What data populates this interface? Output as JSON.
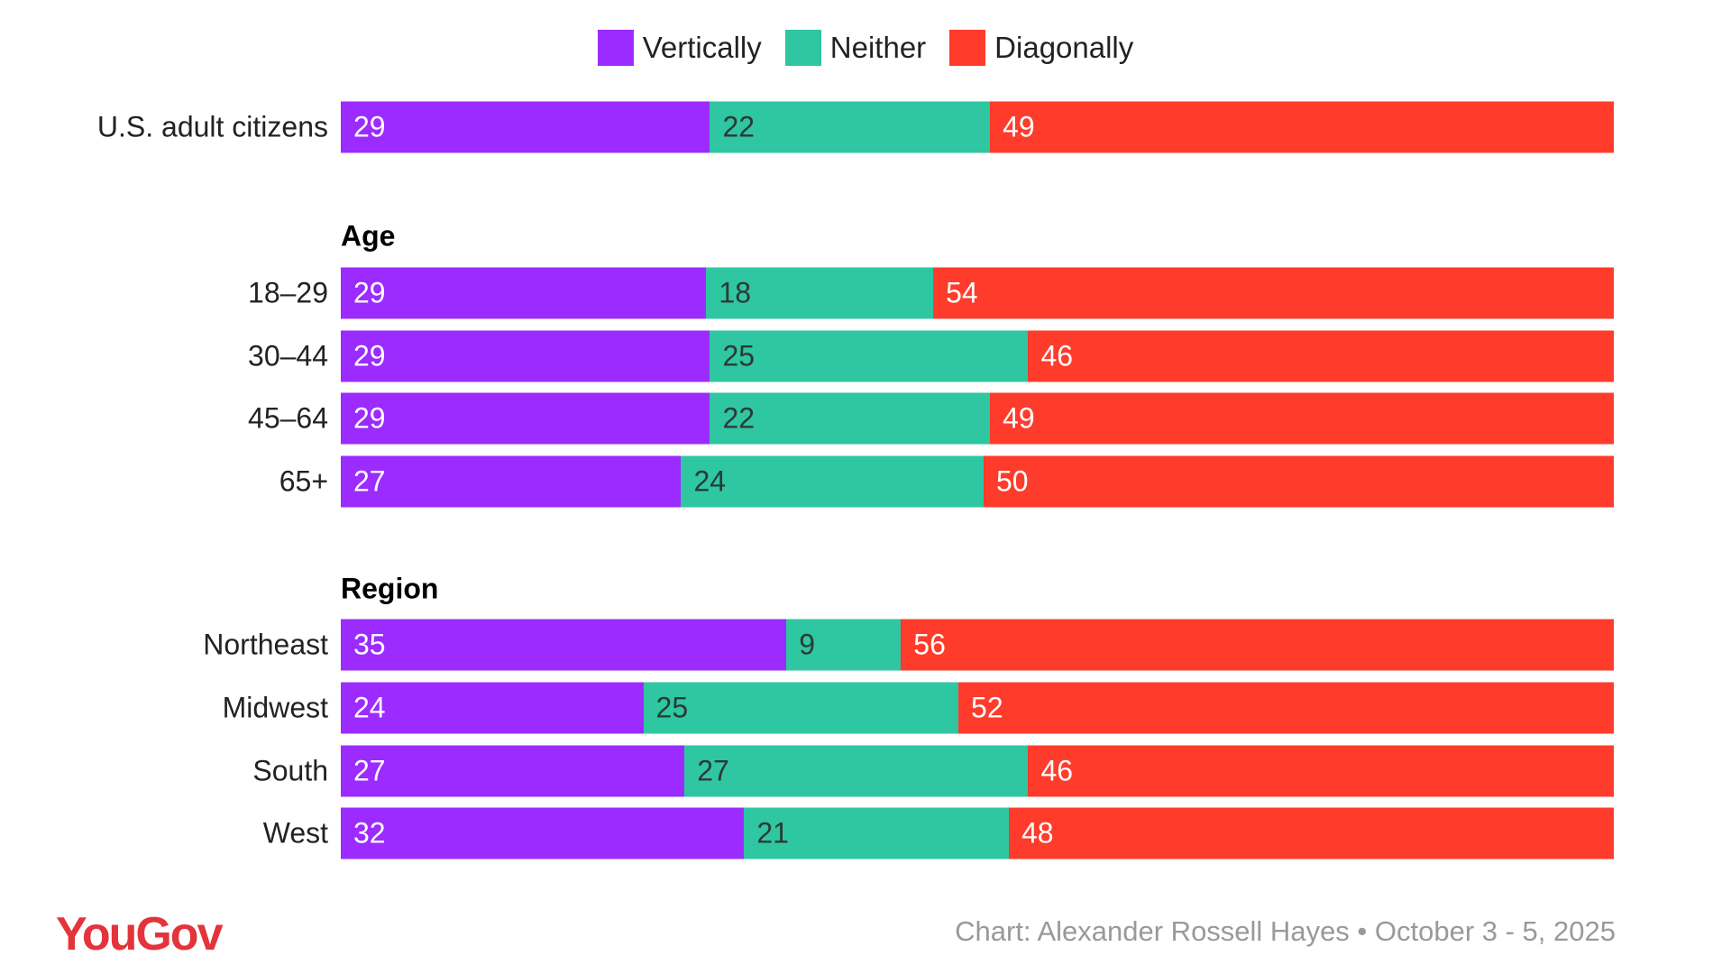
{
  "chart_data": {
    "type": "bar",
    "orientation": "horizontal",
    "stacked": true,
    "legend_placement": "top",
    "series": [
      {
        "name": "Vertically",
        "color": "#9b2bff"
      },
      {
        "name": "Neither",
        "color": "#2fc6a2"
      },
      {
        "name": "Diagonally",
        "color": "#ff3b2b"
      }
    ],
    "rows": [
      {
        "group": "",
        "label": "U.S. adult citizens",
        "values": [
          29,
          22,
          49
        ]
      },
      {
        "group": "Age",
        "label": "18–29",
        "values": [
          29,
          18,
          54
        ]
      },
      {
        "group": "Age",
        "label": "30–44",
        "values": [
          29,
          25,
          46
        ]
      },
      {
        "group": "Age",
        "label": "45–64",
        "values": [
          29,
          22,
          49
        ]
      },
      {
        "group": "Age",
        "label": "65+",
        "values": [
          27,
          24,
          50
        ]
      },
      {
        "group": "Region",
        "label": "Northeast",
        "values": [
          35,
          9,
          56
        ]
      },
      {
        "group": "Region",
        "label": "Midwest",
        "values": [
          24,
          25,
          52
        ]
      },
      {
        "group": "Region",
        "label": "South",
        "values": [
          27,
          27,
          46
        ]
      },
      {
        "group": "Region",
        "label": "West",
        "values": [
          32,
          21,
          48
        ]
      }
    ],
    "groups": [
      "Age",
      "Region"
    ]
  },
  "footer": {
    "logo": "YouGov",
    "credit": "Chart: Alexander Rossell Hayes • October 3 - 5, 2025"
  }
}
